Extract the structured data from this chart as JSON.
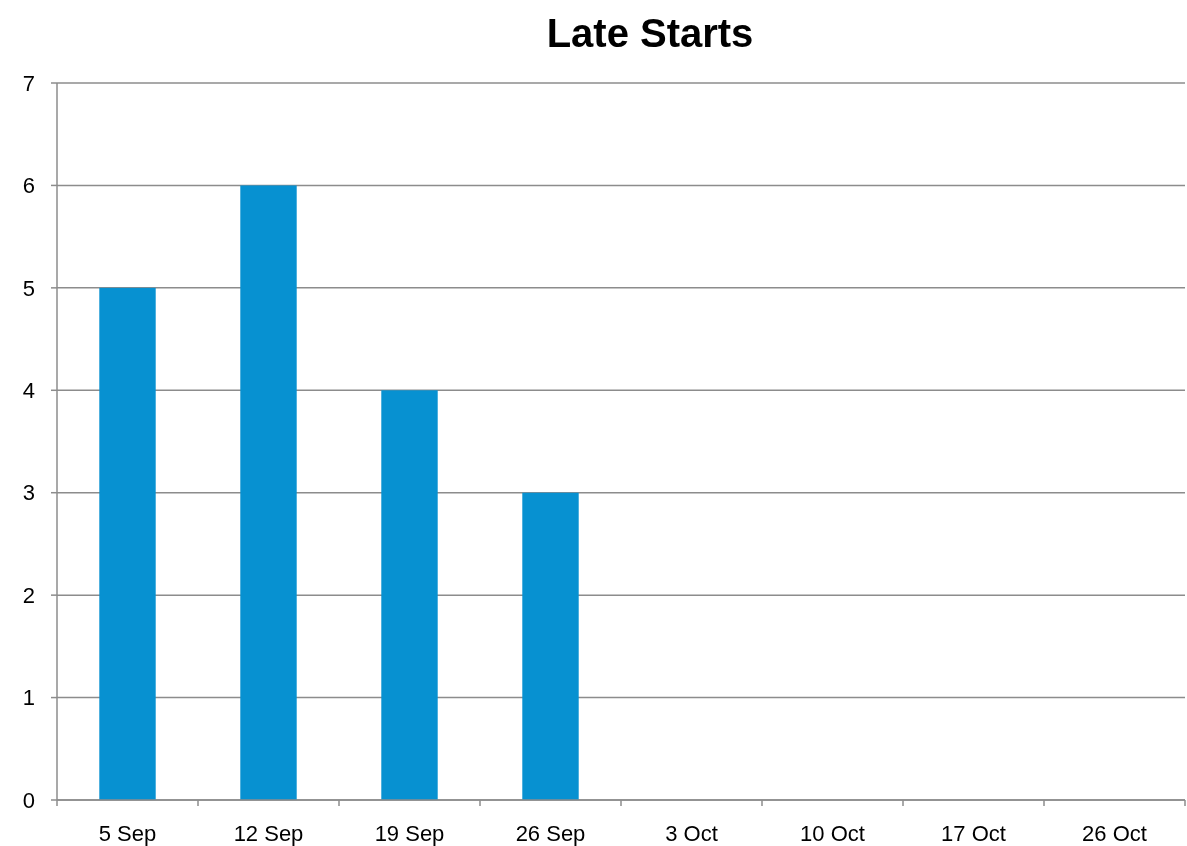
{
  "chart_data": {
    "type": "bar",
    "title": "Late Starts",
    "categories": [
      "5 Sep",
      "12 Sep",
      "19 Sep",
      "26 Sep",
      "3 Oct",
      "10 Oct",
      "17 Oct",
      "26 Oct"
    ],
    "values": [
      5,
      6,
      4,
      3,
      null,
      null,
      null,
      null
    ],
    "color": "#0791d1",
    "ylim": [
      0,
      7
    ],
    "yticks": [
      0,
      1,
      2,
      3,
      4,
      5,
      6,
      7
    ],
    "grid": "y"
  }
}
